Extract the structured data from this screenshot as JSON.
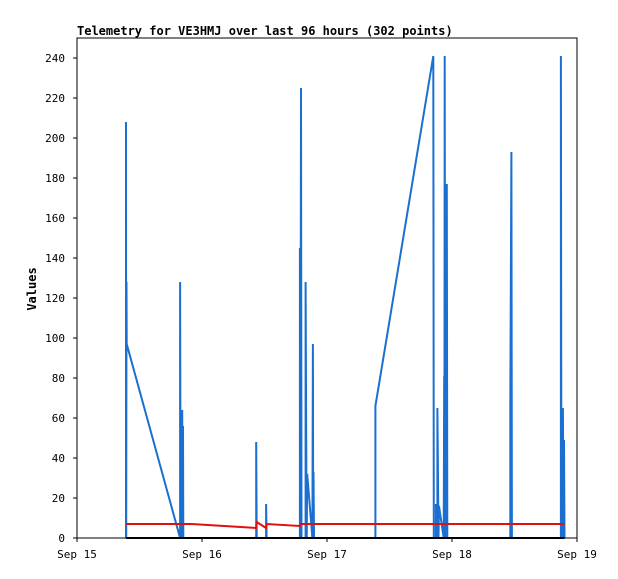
{
  "chart_data": {
    "type": "line",
    "title": "Telemetry for VE3HMJ over last 96 hours (302 points)",
    "xlabel": "",
    "ylabel": "Values",
    "x_range": [
      "Sep 15",
      "Sep 19"
    ],
    "xlim_hours": [
      0,
      96
    ],
    "ylim": [
      0,
      250
    ],
    "x_ticks": [
      {
        "label": "Sep 15",
        "hour": 0
      },
      {
        "label": "Sep 16",
        "hour": 24
      },
      {
        "label": "Sep 17",
        "hour": 48
      },
      {
        "label": "Sep 18",
        "hour": 72
      },
      {
        "label": "Sep 19",
        "hour": 96
      }
    ],
    "y_ticks": [
      0,
      20,
      40,
      60,
      80,
      100,
      120,
      140,
      160,
      180,
      200,
      220,
      240
    ],
    "grid": false,
    "legend": "none",
    "series": [
      {
        "color": "#1a6fd0",
        "points": [
          [
            9.4,
            0
          ],
          [
            9.4,
            208
          ],
          [
            9.45,
            0
          ],
          [
            9.5,
            128
          ],
          [
            9.55,
            97
          ],
          [
            19.8,
            0
          ],
          [
            19.8,
            128
          ],
          [
            19.9,
            0
          ],
          [
            20.0,
            17
          ],
          [
            20.1,
            0
          ],
          [
            20.2,
            64
          ],
          [
            20.3,
            0
          ],
          [
            20.35,
            56
          ],
          [
            20.4,
            0
          ],
          [
            34.4,
            0
          ],
          [
            34.4,
            48
          ],
          [
            34.5,
            0
          ],
          [
            36.3,
            0
          ],
          [
            36.3,
            17
          ],
          [
            36.4,
            0
          ],
          [
            42.8,
            0
          ],
          [
            42.8,
            145
          ],
          [
            42.9,
            0
          ],
          [
            43.0,
            225
          ],
          [
            43.1,
            0
          ],
          [
            43.9,
            0
          ],
          [
            43.9,
            128
          ],
          [
            44.0,
            49
          ],
          [
            44.1,
            0
          ],
          [
            44.2,
            32
          ],
          [
            45.2,
            0
          ],
          [
            45.3,
            97
          ],
          [
            45.35,
            0
          ],
          [
            45.4,
            33
          ],
          [
            45.5,
            0
          ],
          [
            57.3,
            0
          ],
          [
            57.3,
            66
          ],
          [
            68.4,
            241
          ],
          [
            68.5,
            0
          ],
          [
            68.9,
            0
          ],
          [
            68.9,
            17
          ],
          [
            69.2,
            0
          ],
          [
            69.2,
            65
          ],
          [
            69.4,
            0
          ],
          [
            69.5,
            16
          ],
          [
            70.4,
            0
          ],
          [
            70.5,
            81
          ],
          [
            70.55,
            0
          ],
          [
            70.6,
            241
          ],
          [
            70.7,
            0
          ],
          [
            70.8,
            145
          ],
          [
            70.9,
            0
          ],
          [
            71.0,
            177
          ],
          [
            71.1,
            0
          ],
          [
            83.2,
            0
          ],
          [
            83.2,
            65
          ],
          [
            83.4,
            193
          ],
          [
            83.5,
            0
          ],
          [
            92.9,
            0
          ],
          [
            92.9,
            241
          ],
          [
            93.0,
            0
          ],
          [
            93.1,
            33
          ],
          [
            93.2,
            0
          ],
          [
            93.3,
            65
          ],
          [
            93.4,
            0
          ],
          [
            93.5,
            49
          ],
          [
            93.6,
            0
          ]
        ]
      },
      {
        "color": "#e01010",
        "points": [
          [
            9.4,
            7
          ],
          [
            19.8,
            7
          ],
          [
            22.0,
            7
          ],
          [
            34.4,
            5
          ],
          [
            34.5,
            8
          ],
          [
            36.3,
            5
          ],
          [
            36.4,
            7
          ],
          [
            42.8,
            6
          ],
          [
            43.0,
            7
          ],
          [
            93.6,
            7
          ]
        ]
      },
      {
        "color": "#000000",
        "points": [
          [
            9.4,
            0
          ],
          [
            93.6,
            0
          ]
        ]
      }
    ]
  }
}
